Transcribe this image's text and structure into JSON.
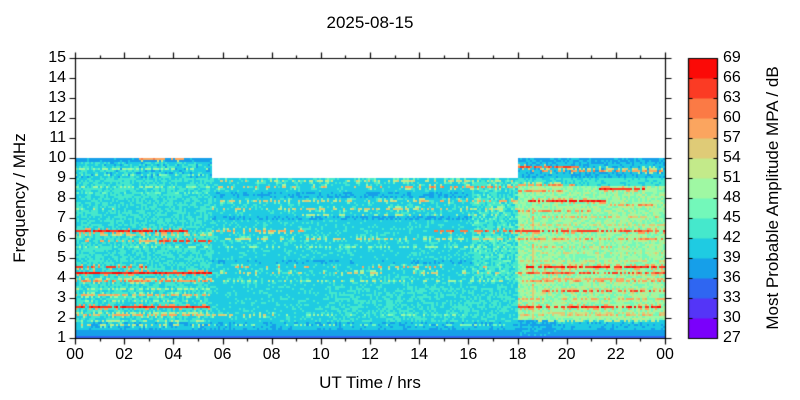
{
  "chart_data": {
    "type": "heatmap",
    "title": "2025-08-15",
    "xlabel": "UT Time / hrs",
    "ylabel": "Frequency / MHz",
    "x_range_hours": [
      0,
      24
    ],
    "y_range_mhz": [
      1,
      15
    ],
    "x_tick_labels": [
      "00",
      "02",
      "04",
      "06",
      "08",
      "10",
      "12",
      "14",
      "16",
      "18",
      "20",
      "22",
      "00"
    ],
    "x_tick_hours": [
      0,
      2,
      4,
      6,
      8,
      10,
      12,
      14,
      16,
      18,
      20,
      22,
      24
    ],
    "x_minor_tick_hours": [
      1,
      3,
      5,
      7,
      9,
      11,
      13,
      15,
      17,
      19,
      21,
      23
    ],
    "y_tick_values": [
      15,
      14,
      13,
      12,
      11,
      10,
      9,
      8,
      7,
      6,
      5,
      4,
      3,
      2,
      1
    ],
    "grid": false,
    "colorbar": {
      "label": "Most Probable Amplitude MPA / dB",
      "min_db": 27,
      "max_db": 69,
      "step_db": 3,
      "tick_labels": [
        69,
        66,
        63,
        60,
        57,
        54,
        51,
        48,
        45,
        42,
        39,
        36,
        33,
        30,
        27
      ],
      "band_colors_low_to_high": [
        "#7a00fb",
        "#5435f7",
        "#2f66f1",
        "#169fe9",
        "#1fcbe2",
        "#45e8cc",
        "#73f8ba",
        "#9ff8a3",
        "#c3ea8a",
        "#dfcb77",
        "#fba55f",
        "#fb7a45",
        "#fb3b24",
        "#fb0a07"
      ]
    },
    "availability_format": [
      "t_start_hr",
      "t_end_hr",
      "f_min_mhz",
      "f_max_mhz"
    ],
    "availability": [
      [
        0,
        5.6,
        1,
        10
      ],
      [
        5.6,
        18,
        1,
        9
      ],
      [
        18,
        24,
        1,
        10
      ]
    ],
    "no_data_color": "#ffffff",
    "zones_format": [
      "t0_hr",
      "t1_hr",
      "f0_mhz",
      "f1_mhz",
      "base_db",
      "noise_db"
    ],
    "zones": [
      [
        0,
        5.6,
        1.8,
        9.0,
        42.2,
        2.4
      ],
      [
        0,
        5.6,
        9.0,
        9.8,
        40.8,
        2.4
      ],
      [
        0,
        5.6,
        9.8,
        10.01,
        37.9,
        1.3
      ],
      [
        5.6,
        18,
        1.8,
        9.0,
        40.9,
        1.7
      ],
      [
        5.6,
        18,
        6.88,
        7.1,
        38.9,
        1.0
      ],
      [
        5.6,
        18,
        7.98,
        8.26,
        39.3,
        1.2
      ],
      [
        5.6,
        18,
        4.7,
        4.94,
        39.6,
        1.2
      ],
      [
        10.2,
        18,
        1.8,
        3.6,
        41.8,
        2.0
      ],
      [
        16.2,
        18,
        3.8,
        8.9,
        42.8,
        3.0
      ],
      [
        18,
        24,
        1.9,
        8.6,
        48.8,
        3.4
      ],
      [
        18,
        24,
        8.6,
        9.05,
        42.6,
        2.2
      ],
      [
        18,
        24,
        9.05,
        9.8,
        39.6,
        2.2
      ],
      [
        18,
        24,
        9.8,
        10.01,
        38.4,
        1.6
      ],
      [
        0,
        24,
        1.45,
        1.8,
        39.7,
        1.5
      ],
      [
        0,
        24,
        1.12,
        1.45,
        37.7,
        1.1
      ],
      [
        18,
        19.6,
        1.12,
        1.9,
        38.6,
        1.2
      ],
      [
        0,
        24,
        1.0,
        1.12,
        34.3,
        0.8
      ]
    ],
    "default_base_db": 41,
    "default_noise_db": 1.8,
    "streaks_format": [
      "freq_mhz",
      "t_start_hr",
      "t_end_hr",
      "amplitude_db",
      "density"
    ],
    "streaks": [
      [
        9.9,
        2.55,
        4.4,
        59,
        0.85
      ],
      [
        9.4,
        0.0,
        5.6,
        49,
        0.45
      ],
      [
        9.15,
        0.0,
        5.6,
        47,
        0.35
      ],
      [
        8.55,
        0.0,
        5.6,
        49,
        0.4
      ],
      [
        8.2,
        0.0,
        5.6,
        46,
        0.3
      ],
      [
        7.45,
        0.0,
        2.2,
        51,
        0.35
      ],
      [
        6.35,
        0.0,
        4.6,
        66,
        0.92
      ],
      [
        6.1,
        0.0,
        5.6,
        55,
        0.45
      ],
      [
        5.85,
        0.3,
        3.4,
        58,
        0.6
      ],
      [
        5.85,
        3.4,
        5.6,
        64,
        0.8
      ],
      [
        5.5,
        0.0,
        5.6,
        49,
        0.4
      ],
      [
        4.55,
        0.0,
        2.9,
        63,
        0.6
      ],
      [
        4.25,
        0.0,
        5.6,
        66,
        0.95
      ],
      [
        3.95,
        0.0,
        5.6,
        54,
        0.45
      ],
      [
        3.8,
        0.0,
        5.6,
        60,
        0.7
      ],
      [
        3.45,
        0.0,
        5.6,
        51,
        0.45
      ],
      [
        3.1,
        0.0,
        5.6,
        57,
        0.65
      ],
      [
        2.8,
        0.0,
        5.6,
        51,
        0.4
      ],
      [
        2.55,
        0.0,
        5.6,
        65,
        0.9
      ],
      [
        2.3,
        0.0,
        5.6,
        52,
        0.45
      ],
      [
        2.1,
        0.0,
        5.6,
        58,
        0.65
      ],
      [
        1.85,
        0.0,
        5.6,
        51,
        0.4
      ],
      [
        1.6,
        0.0,
        5.6,
        53,
        0.55
      ],
      [
        8.85,
        5.6,
        18,
        53,
        0.45
      ],
      [
        8.5,
        5.6,
        13.5,
        56,
        0.35
      ],
      [
        8.5,
        13.5,
        18,
        59,
        0.55
      ],
      [
        7.8,
        5.6,
        14,
        54,
        0.35
      ],
      [
        7.8,
        14,
        18,
        58,
        0.55
      ],
      [
        7.45,
        5.6,
        18,
        55,
        0.4
      ],
      [
        7.1,
        9,
        18,
        51,
        0.3
      ],
      [
        6.35,
        5.6,
        9.5,
        58,
        0.5
      ],
      [
        6.35,
        14.5,
        18,
        62,
        0.65
      ],
      [
        5.9,
        5.6,
        18,
        54,
        0.4
      ],
      [
        5.55,
        6,
        18,
        49,
        0.35
      ],
      [
        4.55,
        5.6,
        18,
        57,
        0.28
      ],
      [
        4.25,
        5.6,
        18,
        55,
        0.3
      ],
      [
        3.8,
        5.6,
        18,
        51,
        0.28
      ],
      [
        2.1,
        5.6,
        8.2,
        55,
        0.5
      ],
      [
        2.1,
        8.2,
        18,
        49,
        0.25
      ],
      [
        1.6,
        5.6,
        18,
        47,
        0.3
      ],
      [
        9.55,
        18,
        20.6,
        63,
        0.85
      ],
      [
        9.3,
        18,
        24,
        59,
        0.6
      ],
      [
        9.45,
        20.6,
        24,
        55,
        0.45
      ],
      [
        8.6,
        18,
        20.5,
        59,
        0.7
      ],
      [
        8.3,
        18,
        20.0,
        60,
        0.7
      ],
      [
        8.45,
        21.3,
        23.2,
        65,
        0.8
      ],
      [
        7.8,
        18.4,
        21.6,
        66,
        0.9
      ],
      [
        7.6,
        21.6,
        23.5,
        60,
        0.55
      ],
      [
        7.35,
        18,
        21,
        60,
        0.65
      ],
      [
        7.0,
        19,
        24,
        57,
        0.55
      ],
      [
        6.6,
        18,
        24,
        55,
        0.5
      ],
      [
        6.35,
        18,
        24,
        64,
        0.8
      ],
      [
        5.9,
        18,
        24,
        60,
        0.65
      ],
      [
        5.5,
        18.5,
        22.5,
        57,
        0.55
      ],
      [
        5.2,
        19,
        24,
        54,
        0.45
      ],
      [
        4.8,
        18,
        24,
        55,
        0.5
      ],
      [
        4.55,
        18.3,
        24,
        66,
        0.85
      ],
      [
        4.25,
        18,
        24,
        63,
        0.75
      ],
      [
        3.95,
        19,
        24,
        57,
        0.55
      ],
      [
        3.8,
        18,
        24,
        59,
        0.6
      ],
      [
        3.45,
        19.5,
        24,
        55,
        0.5
      ],
      [
        3.3,
        19,
        24,
        63,
        0.65
      ],
      [
        2.9,
        18,
        24,
        58,
        0.55
      ],
      [
        2.55,
        18,
        24,
        65,
        0.8
      ],
      [
        2.3,
        19,
        24,
        55,
        0.45
      ],
      [
        2.1,
        18,
        24,
        57,
        0.55
      ],
      [
        1.8,
        18.8,
        24,
        51,
        0.45
      ]
    ],
    "verticals": [
      {
        "t": 18.62,
        "tw": 0.12,
        "f0": 1.9,
        "f1": 7.6,
        "a": 56,
        "d": 0.85
      }
    ],
    "bins": {
      "t": 288,
      "f_step_mhz": 0.1
    },
    "seed": 20250815
  }
}
